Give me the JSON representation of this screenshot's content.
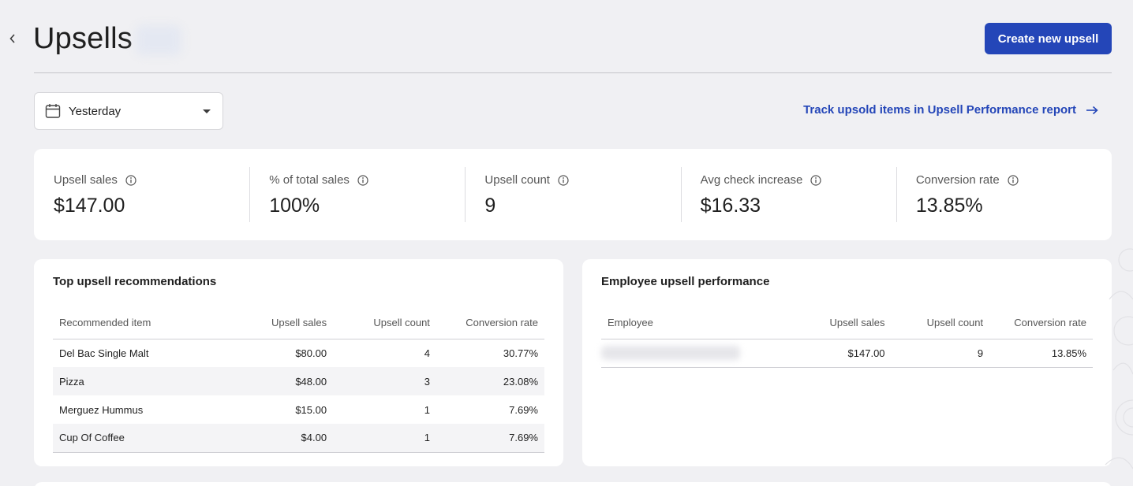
{
  "header": {
    "title": "Upsells",
    "create_button": "Create new upsell"
  },
  "filters": {
    "date_range": "Yesterday"
  },
  "report_link": {
    "label": "Track upsold items in Upsell Performance report"
  },
  "metrics": [
    {
      "label": "Upsell sales",
      "value": "$147.00"
    },
    {
      "label": "% of total sales",
      "value": "100%"
    },
    {
      "label": "Upsell count",
      "value": "9"
    },
    {
      "label": "Avg check increase",
      "value": "$16.33"
    },
    {
      "label": "Conversion rate",
      "value": "13.85%"
    }
  ],
  "top_recommendations": {
    "title": "Top upsell recommendations",
    "columns": [
      "Recommended item",
      "Upsell sales",
      "Upsell count",
      "Conversion rate"
    ],
    "rows": [
      {
        "item": "Del Bac Single Malt",
        "sales": "$80.00",
        "count": "4",
        "rate": "30.77%"
      },
      {
        "item": "Pizza",
        "sales": "$48.00",
        "count": "3",
        "rate": "23.08%"
      },
      {
        "item": "Merguez Hummus",
        "sales": "$15.00",
        "count": "1",
        "rate": "7.69%"
      },
      {
        "item": "Cup Of Coffee",
        "sales": "$4.00",
        "count": "1",
        "rate": "7.69%"
      }
    ]
  },
  "employee_performance": {
    "title": "Employee upsell performance",
    "columns": [
      "Employee",
      "Upsell sales",
      "Upsell count",
      "Conversion rate"
    ],
    "rows": [
      {
        "sales": "$147.00",
        "count": "9",
        "rate": "13.85%"
      }
    ]
  },
  "colors": {
    "accent": "#2446b8",
    "background": "#f0f0f3"
  }
}
